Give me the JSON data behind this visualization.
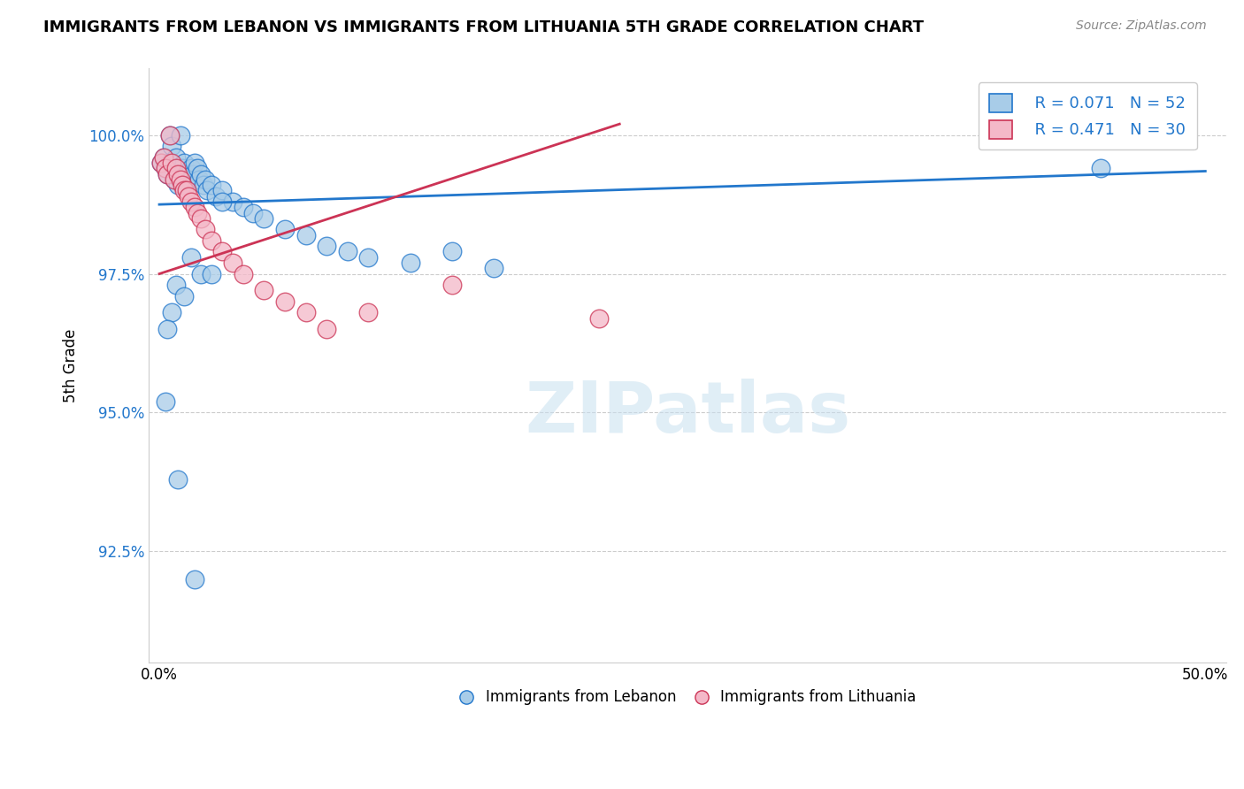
{
  "title": "IMMIGRANTS FROM LEBANON VS IMMIGRANTS FROM LITHUANIA 5TH GRADE CORRELATION CHART",
  "source": "Source: ZipAtlas.com",
  "ylabel": "5th Grade",
  "xlim": [
    -0.5,
    51.0
  ],
  "ylim": [
    90.5,
    101.2
  ],
  "yticks": [
    92.5,
    95.0,
    97.5,
    100.0
  ],
  "xticks": [
    0.0,
    10.0,
    20.0,
    30.0,
    40.0,
    50.0
  ],
  "R_blue": 0.071,
  "N_blue": 52,
  "R_pink": 0.471,
  "N_pink": 30,
  "blue_color": "#a8cce8",
  "pink_color": "#f4b8c8",
  "trend_blue": "#2277cc",
  "trend_pink": "#cc3355",
  "watermark_text": "ZIPatlas",
  "blue_scatter_x": [
    0.1,
    0.2,
    0.3,
    0.4,
    0.5,
    0.5,
    0.6,
    0.7,
    0.8,
    0.9,
    1.0,
    1.0,
    1.1,
    1.2,
    1.3,
    1.4,
    1.5,
    1.6,
    1.7,
    1.8,
    1.9,
    2.0,
    2.1,
    2.2,
    2.3,
    2.5,
    2.7,
    3.0,
    3.5,
    4.0,
    4.5,
    5.0,
    6.0,
    7.0,
    8.0,
    9.0,
    10.0,
    12.0,
    14.0,
    16.0,
    1.5,
    2.0,
    0.8,
    1.2,
    0.6,
    0.4,
    0.3,
    0.9,
    1.7,
    2.5,
    3.0,
    45.0
  ],
  "blue_scatter_y": [
    99.5,
    99.6,
    99.4,
    99.3,
    99.5,
    100.0,
    99.8,
    99.2,
    99.6,
    99.1,
    99.3,
    100.0,
    99.4,
    99.5,
    99.3,
    99.2,
    99.4,
    99.3,
    99.5,
    99.4,
    99.2,
    99.3,
    99.1,
    99.2,
    99.0,
    99.1,
    98.9,
    99.0,
    98.8,
    98.7,
    98.6,
    98.5,
    98.3,
    98.2,
    98.0,
    97.9,
    97.8,
    97.7,
    97.9,
    97.6,
    97.8,
    97.5,
    97.3,
    97.1,
    96.8,
    96.5,
    95.2,
    93.8,
    92.0,
    97.5,
    98.8,
    99.4
  ],
  "pink_scatter_x": [
    0.1,
    0.2,
    0.3,
    0.4,
    0.5,
    0.6,
    0.7,
    0.8,
    0.9,
    1.0,
    1.1,
    1.2,
    1.3,
    1.4,
    1.5,
    1.7,
    1.8,
    2.0,
    2.2,
    2.5,
    3.0,
    3.5,
    4.0,
    5.0,
    6.0,
    7.0,
    8.0,
    10.0,
    14.0,
    21.0
  ],
  "pink_scatter_y": [
    99.5,
    99.6,
    99.4,
    99.3,
    100.0,
    99.5,
    99.2,
    99.4,
    99.3,
    99.2,
    99.1,
    99.0,
    99.0,
    98.9,
    98.8,
    98.7,
    98.6,
    98.5,
    98.3,
    98.1,
    97.9,
    97.7,
    97.5,
    97.2,
    97.0,
    96.8,
    96.5,
    96.8,
    97.3,
    96.7
  ]
}
